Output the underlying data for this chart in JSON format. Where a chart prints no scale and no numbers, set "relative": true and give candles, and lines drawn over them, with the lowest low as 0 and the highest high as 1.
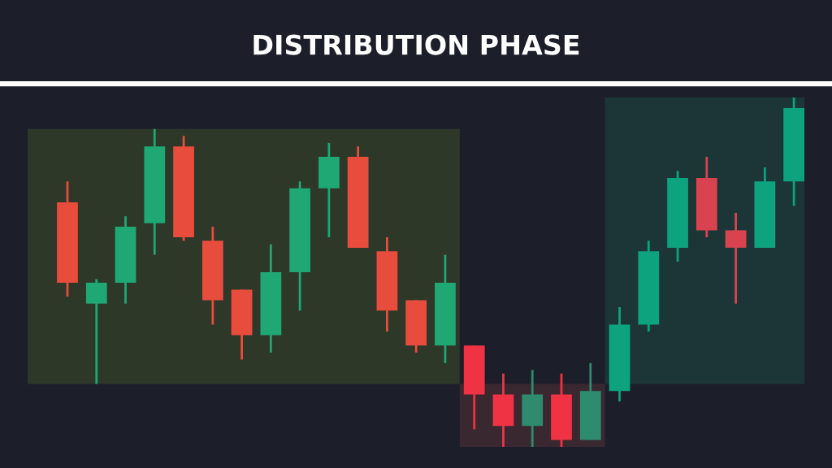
{
  "chart_data": {
    "type": "candlestick",
    "title": "DISTRIBUTION PHASE",
    "relative": true,
    "categories": [
      null,
      null,
      null,
      null,
      null,
      null,
      null,
      null,
      null,
      null,
      null,
      null,
      null,
      null,
      null,
      null,
      null,
      null,
      null,
      null,
      null,
      null,
      null,
      null,
      null,
      null
    ],
    "ohlc": [
      [
        0.7,
        0.76,
        0.43,
        0.47
      ],
      [
        0.41,
        0.48,
        0.18,
        0.47
      ],
      [
        0.47,
        0.66,
        0.41,
        0.63
      ],
      [
        0.64,
        0.91,
        0.55,
        0.86
      ],
      [
        0.86,
        0.89,
        0.59,
        0.6
      ],
      [
        0.59,
        0.63,
        0.35,
        0.42
      ],
      [
        0.45,
        0.45,
        0.25,
        0.32
      ],
      [
        0.32,
        0.58,
        0.27,
        0.5
      ],
      [
        0.5,
        0.76,
        0.39,
        0.74
      ],
      [
        0.74,
        0.87,
        0.6,
        0.83
      ],
      [
        0.83,
        0.86,
        0.57,
        0.57
      ],
      [
        0.56,
        0.6,
        0.33,
        0.39
      ],
      [
        0.42,
        0.42,
        0.27,
        0.29
      ],
      [
        0.29,
        0.55,
        0.24,
        0.47
      ],
      [
        0.29,
        0.29,
        0.05,
        0.15
      ],
      [
        0.15,
        0.21,
        0.0,
        0.06
      ],
      [
        0.06,
        0.22,
        0.0,
        0.15
      ],
      [
        0.15,
        0.21,
        0.0,
        0.02
      ],
      [
        0.02,
        0.24,
        0.02,
        0.16
      ],
      [
        0.16,
        0.4,
        0.13,
        0.35
      ],
      [
        0.35,
        0.59,
        0.33,
        0.56
      ],
      [
        0.57,
        0.79,
        0.53,
        0.77
      ],
      [
        0.77,
        0.83,
        0.6,
        0.62
      ],
      [
        0.62,
        0.67,
        0.41,
        0.57
      ],
      [
        0.57,
        0.8,
        0.57,
        0.76
      ],
      [
        0.76,
        1.0,
        0.69,
        0.97
      ]
    ],
    "colors": [
      "#e74c3c",
      "#1fa774",
      "#1fa774",
      "#1fa774",
      "#e74c3c",
      "#e74c3c",
      "#e74c3c",
      "#1fa774",
      "#1fa774",
      "#1fa774",
      "#e74c3c",
      "#e74c3c",
      "#e74c3c",
      "#1fa774",
      "#ef3345",
      "#ef3345",
      "#2e8b6e",
      "#ef3345",
      "#2e8b6e",
      "#0ea37f",
      "#0ea37f",
      "#0ea37f",
      "#d9434f",
      "#d9434f",
      "#0ea37f",
      "#0ea37f"
    ]
  }
}
